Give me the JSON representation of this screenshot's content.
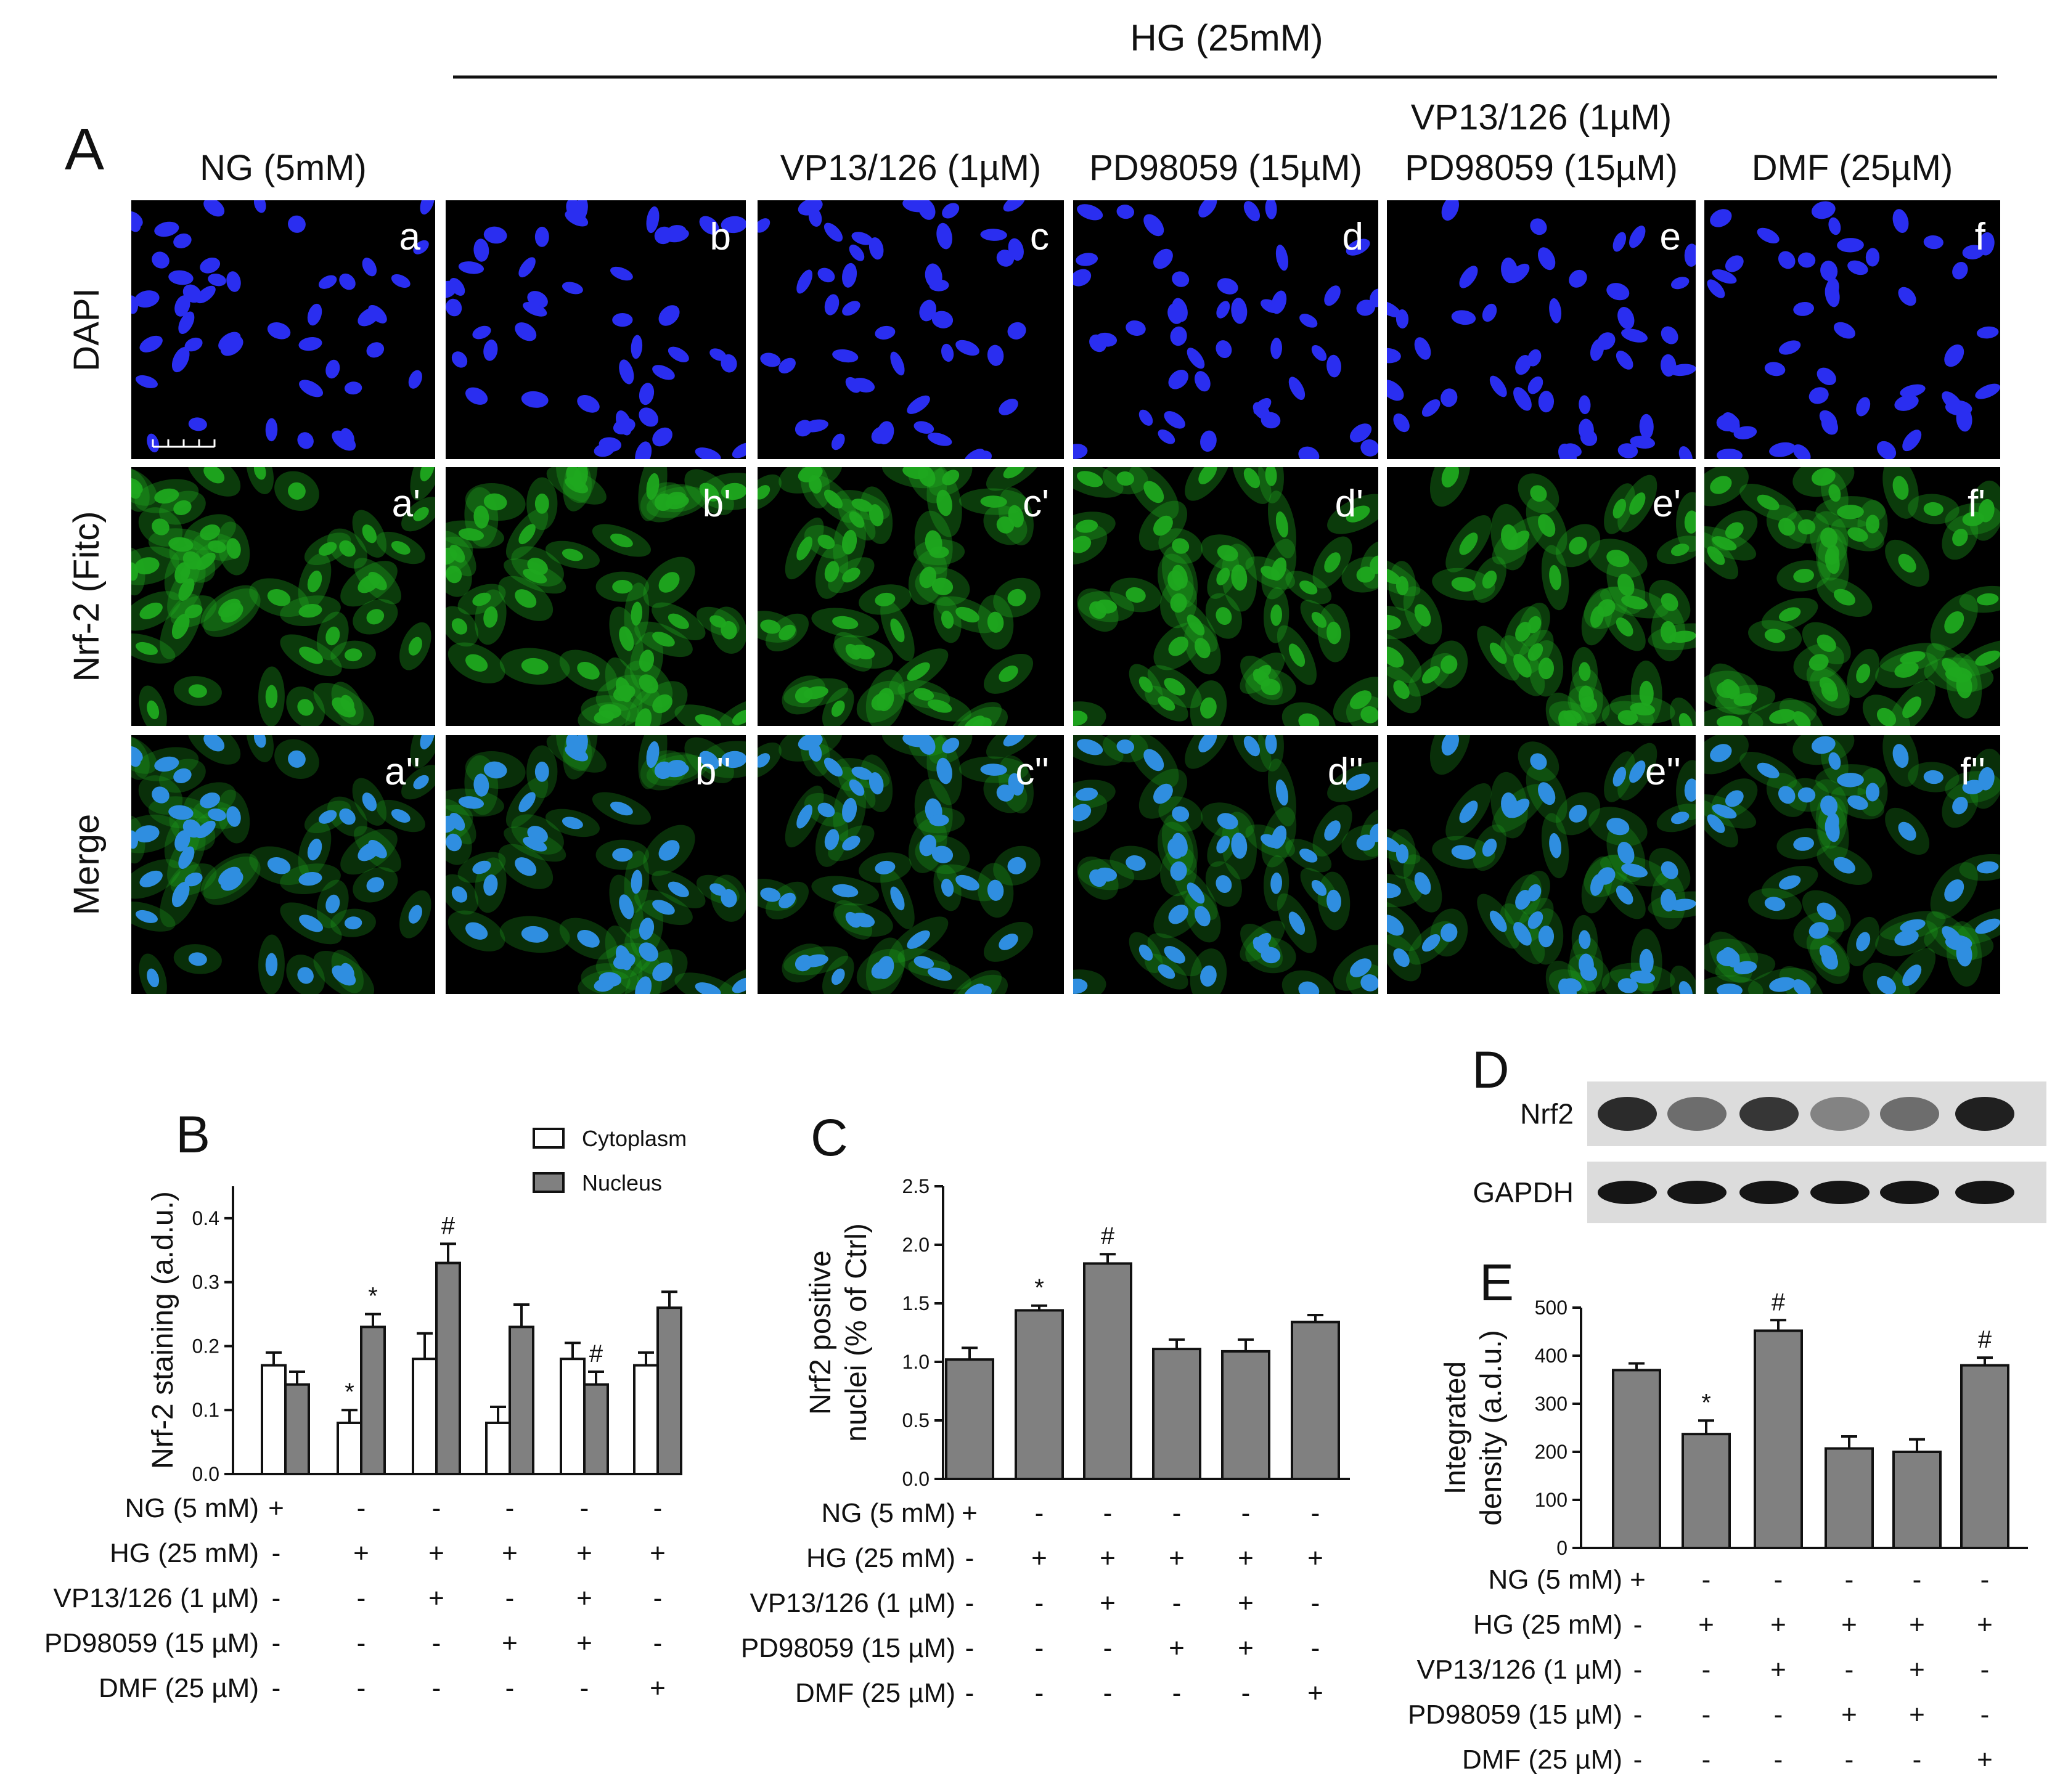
{
  "panel_a": {
    "letter": "A",
    "hg_header": "HG (25mM)",
    "column_headers": [
      {
        "line1": "",
        "line2": "NG (5mM)"
      },
      {
        "line1": "",
        "line2": ""
      },
      {
        "line1": "",
        "line2": "VP13/126 (1µM)"
      },
      {
        "line1": "",
        "line2": "PD98059 (15µM)"
      },
      {
        "line1": "VP13/126 (1µM)",
        "line2": "PD98059 (15µM)"
      },
      {
        "line1": "",
        "line2": "DMF (25µM)"
      }
    ],
    "row_labels": [
      "DAPI",
      "Nrf-2 (Fitc)",
      "Merge"
    ],
    "panel_labels": [
      [
        "a",
        "b",
        "c",
        "d",
        "e",
        "f"
      ],
      [
        "a'",
        "b'",
        "c'",
        "d'",
        "e'",
        "f'"
      ],
      [
        "a''",
        "b''",
        "c''",
        "d''",
        "e''",
        "f''"
      ]
    ],
    "colors": {
      "dapi": "#2a2ef0",
      "fitc": "#1fa81f",
      "merge_nucleus": "#2f8ee0",
      "background": "#000000"
    }
  },
  "treatment_rows": [
    {
      "label": "NG (5 mM)",
      "signs": [
        "+",
        "-",
        "-",
        "-",
        "-",
        "-"
      ]
    },
    {
      "label": "HG (25 mM)",
      "signs": [
        "-",
        "+",
        "+",
        "+",
        "+",
        "+"
      ]
    },
    {
      "label": "VP13/126 (1 µM)",
      "signs": [
        "-",
        "-",
        "+",
        "-",
        "+",
        "-"
      ]
    },
    {
      "label": "PD98059 (15 µM)",
      "signs": [
        "-",
        "-",
        "-",
        "+",
        "+",
        "-"
      ]
    },
    {
      "label": "DMF (25 µM)",
      "signs": [
        "-",
        "-",
        "-",
        "-",
        "-",
        "+"
      ]
    }
  ],
  "chart_data": [
    {
      "panel": "B",
      "type": "bar",
      "ylabel": "Nrf-2 staining (a.d.u.)",
      "ylim": [
        0,
        0.45
      ],
      "yticks": [
        "0.0",
        "0.1",
        "0.2",
        "0.3",
        "0.4"
      ],
      "legend": [
        "Cytoplasm",
        "Nucleus"
      ],
      "legend_position": "top-right",
      "series": [
        {
          "name": "Cytoplasm",
          "color": "#ffffff",
          "values": [
            0.17,
            0.08,
            0.18,
            0.08,
            0.18,
            0.17
          ],
          "errors": [
            0.02,
            0.02,
            0.04,
            0.025,
            0.025,
            0.02
          ],
          "markers": [
            "",
            "*",
            "",
            "",
            "",
            ""
          ]
        },
        {
          "name": "Nucleus",
          "color": "#808080",
          "values": [
            0.14,
            0.23,
            0.33,
            0.23,
            0.14,
            0.26
          ],
          "errors": [
            0.02,
            0.02,
            0.03,
            0.035,
            0.02,
            0.025
          ],
          "markers": [
            "",
            "*",
            "#",
            "",
            "#",
            ""
          ]
        }
      ]
    },
    {
      "panel": "C",
      "type": "bar",
      "ylabel_line1": "Nrf2 positive",
      "ylabel_line2": "nuclei (% of Ctrl)",
      "ylim": [
        0,
        2.5
      ],
      "yticks": [
        "0.0",
        "0.5",
        "1.0",
        "1.5",
        "2.0",
        "2.5"
      ],
      "values": [
        1.02,
        1.44,
        1.84,
        1.11,
        1.09,
        1.34
      ],
      "errors": [
        0.1,
        0.04,
        0.08,
        0.08,
        0.1,
        0.06
      ],
      "markers": [
        "",
        "*",
        "#",
        "",
        "",
        ""
      ],
      "color": "#808080"
    },
    {
      "panel": "E",
      "type": "bar",
      "ylabel_line1": "Integrated",
      "ylabel_line2": "density (a.d.u.)",
      "ylim": [
        0,
        500
      ],
      "yticks": [
        "0",
        "100",
        "200",
        "300",
        "400",
        "500"
      ],
      "values": [
        370,
        237,
        452,
        207,
        200,
        380
      ],
      "errors": [
        14,
        28,
        22,
        25,
        26,
        16
      ],
      "markers": [
        "",
        "*",
        "#",
        "",
        "",
        "#"
      ],
      "color": "#808080"
    }
  ],
  "panel_d": {
    "letter": "D",
    "band_labels": [
      "Nrf2",
      "GAPDH"
    ],
    "nrf2_intensity": [
      0.85,
      0.55,
      0.8,
      0.45,
      0.55,
      0.9
    ],
    "gapdh_intensity": [
      0.95,
      0.95,
      0.95,
      0.95,
      0.95,
      0.95
    ]
  }
}
